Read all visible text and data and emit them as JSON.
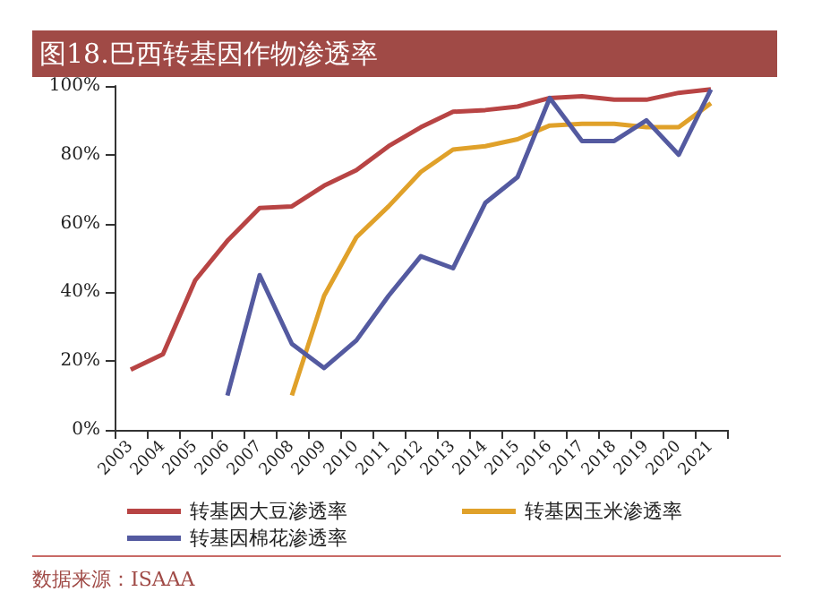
{
  "chart_data": {
    "type": "line",
    "title": "图18.巴西转基因作物渗透率",
    "categories": [
      "2003",
      "2004",
      "2005",
      "2006",
      "2007",
      "2008",
      "2009",
      "2010",
      "2011",
      "2012",
      "2013",
      "2014",
      "2015",
      "2016",
      "2017",
      "2018",
      "2019",
      "2020",
      "2021"
    ],
    "series": [
      {
        "name": "转基因大豆渗透率",
        "color": "#b84444",
        "values": [
          17.5,
          22,
          43.5,
          55,
          64.5,
          65,
          71,
          75.5,
          82.5,
          88,
          92.5,
          93,
          94,
          96.5,
          97,
          96,
          96,
          98,
          99
        ]
      },
      {
        "name": "转基因玉米渗透率",
        "color": "#e0a12a",
        "values": [
          null,
          null,
          null,
          null,
          null,
          10,
          39,
          56,
          65,
          75,
          81.5,
          82.5,
          84.5,
          88.5,
          89,
          89,
          88,
          88,
          95
        ]
      },
      {
        "name": "转基因棉花渗透率",
        "color": "#545aa0",
        "values": [
          null,
          null,
          null,
          10,
          45,
          25,
          18,
          26,
          39,
          50.5,
          47,
          66,
          73.5,
          96.5,
          84,
          84,
          90,
          80,
          99
        ]
      }
    ],
    "ylim": [
      0,
      100
    ],
    "yticks": [
      {
        "value": 0,
        "label": "0%"
      },
      {
        "value": 20,
        "label": "20%"
      },
      {
        "value": 40,
        "label": "40%"
      },
      {
        "value": 60,
        "label": "60%"
      },
      {
        "value": 80,
        "label": "80%"
      },
      {
        "value": 100,
        "label": "100%"
      }
    ],
    "grid": false,
    "legend": "bottom",
    "marker": "none",
    "line_style": "solid",
    "annotations": [
      "数据来源：ISAAA"
    ]
  }
}
